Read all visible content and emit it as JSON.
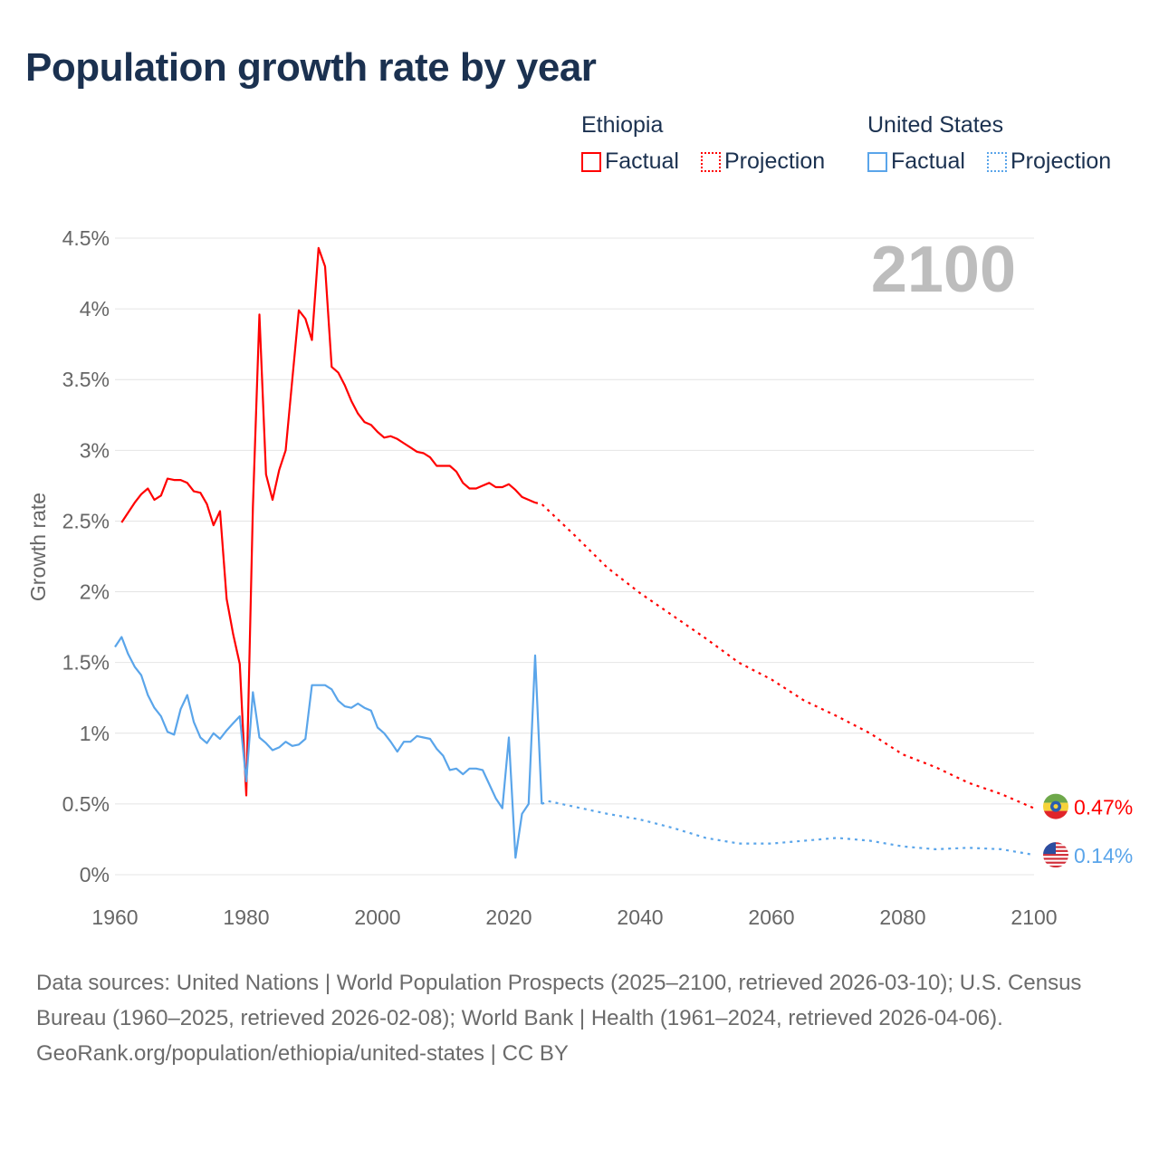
{
  "title": "Population growth rate by year",
  "legend": {
    "groups": [
      {
        "name": "Ethiopia",
        "color": "#ff0000",
        "factual": "Factual",
        "projection": "Projection"
      },
      {
        "name": "United States",
        "color": "#5aa5ea",
        "factual": "Factual",
        "projection": "Projection"
      }
    ]
  },
  "year_label": "2100",
  "footer": {
    "sources": "Data sources: United Nations | World Population Prospects (2025–2100, retrieved 2026-03-10); U.S. Census Bureau (1960–2025, retrieved 2026-02-08); World Bank | Health (1961–2024, retrieved 2026-04-06).",
    "credit": "GeoRank.org/population/ethiopia/united-states | CC BY"
  },
  "chart_data": {
    "type": "line",
    "ylabel": "Growth rate",
    "xlim": [
      1960,
      2100
    ],
    "ylim": [
      0,
      4.5
    ],
    "xticks": [
      "1960",
      "1980",
      "2000",
      "2020",
      "2040",
      "2060",
      "2080",
      "2100"
    ],
    "xtick_values": [
      1960,
      1980,
      2000,
      2020,
      2040,
      2060,
      2080,
      2100
    ],
    "yticks": [
      "0%",
      "0.5%",
      "1%",
      "1.5%",
      "2%",
      "2.5%",
      "3%",
      "3.5%",
      "4%",
      "4.5%"
    ],
    "ytick_values": [
      0,
      0.5,
      1,
      1.5,
      2,
      2.5,
      3,
      3.5,
      4,
      4.5
    ],
    "grid": true,
    "series": [
      {
        "name": "Ethiopia",
        "color": "#ff0000",
        "end_label": "0.47%",
        "factual": {
          "x": [
            1961,
            1962,
            1963,
            1964,
            1965,
            1966,
            1967,
            1968,
            1969,
            1970,
            1971,
            1972,
            1973,
            1974,
            1975,
            1976,
            1977,
            1978,
            1979,
            1980,
            1981,
            1982,
            1983,
            1984,
            1985,
            1986,
            1987,
            1988,
            1989,
            1990,
            1991,
            1992,
            1993,
            1994,
            1995,
            1996,
            1997,
            1998,
            1999,
            2000,
            2001,
            2002,
            2003,
            2004,
            2005,
            2006,
            2007,
            2008,
            2009,
            2010,
            2011,
            2012,
            2013,
            2014,
            2015,
            2016,
            2017,
            2018,
            2019,
            2020,
            2021,
            2022,
            2023,
            2024
          ],
          "y": [
            2.49,
            2.56,
            2.63,
            2.69,
            2.73,
            2.65,
            2.68,
            2.8,
            2.79,
            2.79,
            2.77,
            2.71,
            2.7,
            2.62,
            2.47,
            2.57,
            1.95,
            1.7,
            1.49,
            0.56,
            2.6,
            3.96,
            2.83,
            2.65,
            2.86,
            3.0,
            3.5,
            3.99,
            3.93,
            3.78,
            4.43,
            4.3,
            3.59,
            3.55,
            3.46,
            3.35,
            3.26,
            3.2,
            3.18,
            3.13,
            3.09,
            3.1,
            3.08,
            3.05,
            3.02,
            2.99,
            2.98,
            2.95,
            2.89,
            2.89,
            2.89,
            2.85,
            2.77,
            2.73,
            2.73,
            2.75,
            2.77,
            2.74,
            2.74,
            2.76,
            2.72,
            2.67,
            2.65,
            2.63
          ]
        },
        "projection": {
          "x": [
            2024,
            2025,
            2030,
            2035,
            2040,
            2045,
            2050,
            2055,
            2060,
            2065,
            2070,
            2075,
            2080,
            2085,
            2090,
            2095,
            2100
          ],
          "y": [
            2.63,
            2.62,
            2.4,
            2.17,
            1.99,
            1.83,
            1.67,
            1.5,
            1.38,
            1.23,
            1.12,
            1.0,
            0.85,
            0.76,
            0.65,
            0.57,
            0.47
          ]
        }
      },
      {
        "name": "United States",
        "color": "#5aa5ea",
        "end_label": "0.14%",
        "factual": {
          "x": [
            1960,
            1961,
            1962,
            1963,
            1964,
            1965,
            1966,
            1967,
            1968,
            1969,
            1970,
            1971,
            1972,
            1973,
            1974,
            1975,
            1976,
            1977,
            1978,
            1979,
            1980,
            1981,
            1982,
            1983,
            1984,
            1985,
            1986,
            1987,
            1988,
            1989,
            1990,
            1991,
            1992,
            1993,
            1994,
            1995,
            1996,
            1997,
            1998,
            1999,
            2000,
            2001,
            2002,
            2003,
            2004,
            2005,
            2006,
            2007,
            2008,
            2009,
            2010,
            2011,
            2012,
            2013,
            2014,
            2015,
            2016,
            2017,
            2018,
            2019,
            2020,
            2021,
            2022,
            2023,
            2024,
            2025
          ],
          "y": [
            1.61,
            1.68,
            1.56,
            1.47,
            1.41,
            1.27,
            1.18,
            1.12,
            1.01,
            0.99,
            1.17,
            1.27,
            1.08,
            0.97,
            0.93,
            1.0,
            0.96,
            1.02,
            1.07,
            1.12,
            0.66,
            1.29,
            0.97,
            0.93,
            0.88,
            0.9,
            0.94,
            0.91,
            0.92,
            0.96,
            1.34,
            1.34,
            1.34,
            1.31,
            1.23,
            1.19,
            1.18,
            1.21,
            1.18,
            1.16,
            1.04,
            1.0,
            0.94,
            0.87,
            0.94,
            0.94,
            0.98,
            0.97,
            0.96,
            0.89,
            0.84,
            0.74,
            0.75,
            0.71,
            0.75,
            0.75,
            0.74,
            0.64,
            0.54,
            0.47,
            0.97,
            0.12,
            0.43,
            0.5,
            1.55,
            0.5
          ]
        },
        "projection": {
          "x": [
            2025,
            2026,
            2030,
            2035,
            2040,
            2045,
            2050,
            2055,
            2060,
            2065,
            2070,
            2075,
            2080,
            2085,
            2090,
            2095,
            2100
          ],
          "y": [
            0.5,
            0.52,
            0.48,
            0.43,
            0.39,
            0.33,
            0.26,
            0.22,
            0.22,
            0.24,
            0.26,
            0.24,
            0.2,
            0.18,
            0.19,
            0.18,
            0.14
          ]
        }
      }
    ]
  }
}
